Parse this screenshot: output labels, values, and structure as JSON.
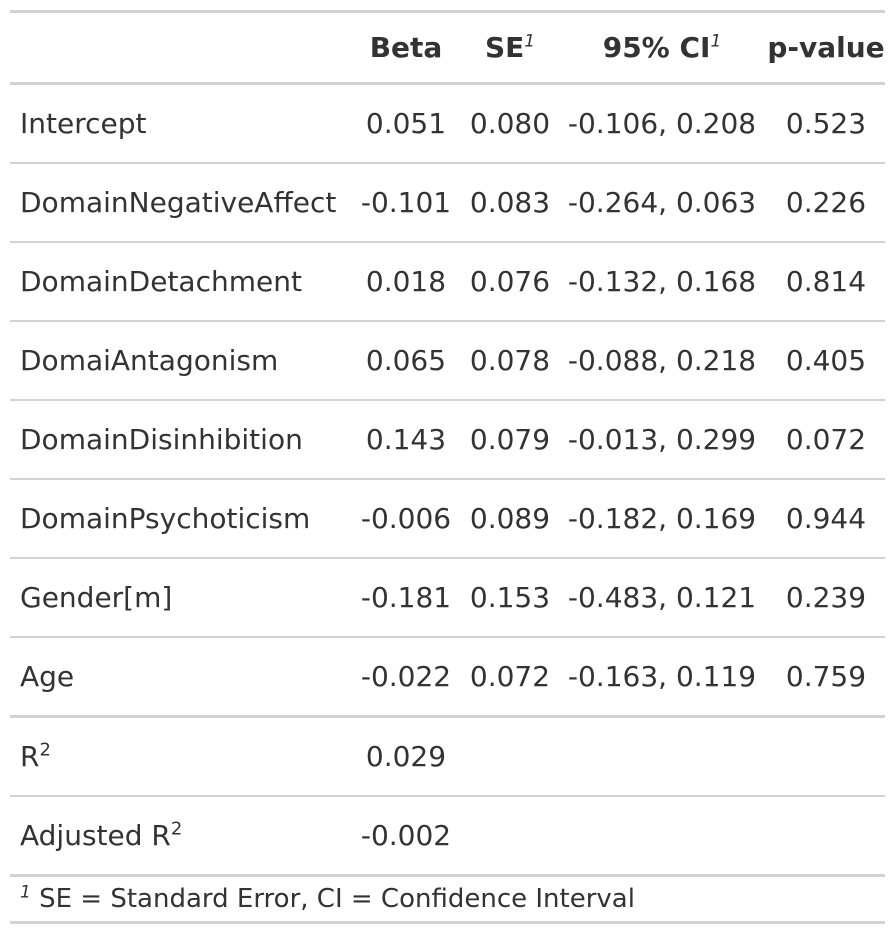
{
  "header": {
    "col0": "",
    "beta": "Beta",
    "se": "SE",
    "ci": "95% CI",
    "pvalue": "p-value",
    "footnote_mark": "1"
  },
  "rows": [
    {
      "term": "Intercept",
      "beta": "0.051",
      "se": "0.080",
      "ci": "-0.106, 0.208",
      "p": "0.523"
    },
    {
      "term": "DomainNegativeAffect",
      "beta": "-0.101",
      "se": "0.083",
      "ci": "-0.264, 0.063",
      "p": "0.226"
    },
    {
      "term": "DomainDetachment",
      "beta": "0.018",
      "se": "0.076",
      "ci": "-0.132, 0.168",
      "p": "0.814"
    },
    {
      "term": "DomaiAntagonism",
      "beta": "0.065",
      "se": "0.078",
      "ci": "-0.088, 0.218",
      "p": "0.405"
    },
    {
      "term": "DomainDisinhibition",
      "beta": "0.143",
      "se": "0.079",
      "ci": "-0.013, 0.299",
      "p": "0.072"
    },
    {
      "term": "DomainPsychoticism",
      "beta": "-0.006",
      "se": "0.089",
      "ci": "-0.182, 0.169",
      "p": "0.944"
    },
    {
      "term": "Gender[m]",
      "beta": "-0.181",
      "se": "0.153",
      "ci": "-0.483, 0.121",
      "p": "0.239"
    },
    {
      "term": "Age",
      "beta": "-0.022",
      "se": "0.072",
      "ci": "-0.163, 0.119",
      "p": "0.759"
    }
  ],
  "glance": [
    {
      "label": "R",
      "sup": "2",
      "beta": "0.029"
    },
    {
      "label": "Adjusted R",
      "sup": "2",
      "beta": "-0.002"
    }
  ],
  "footnote": {
    "mark": "1",
    "text": "SE = Standard Error, CI = Confidence Interval"
  }
}
